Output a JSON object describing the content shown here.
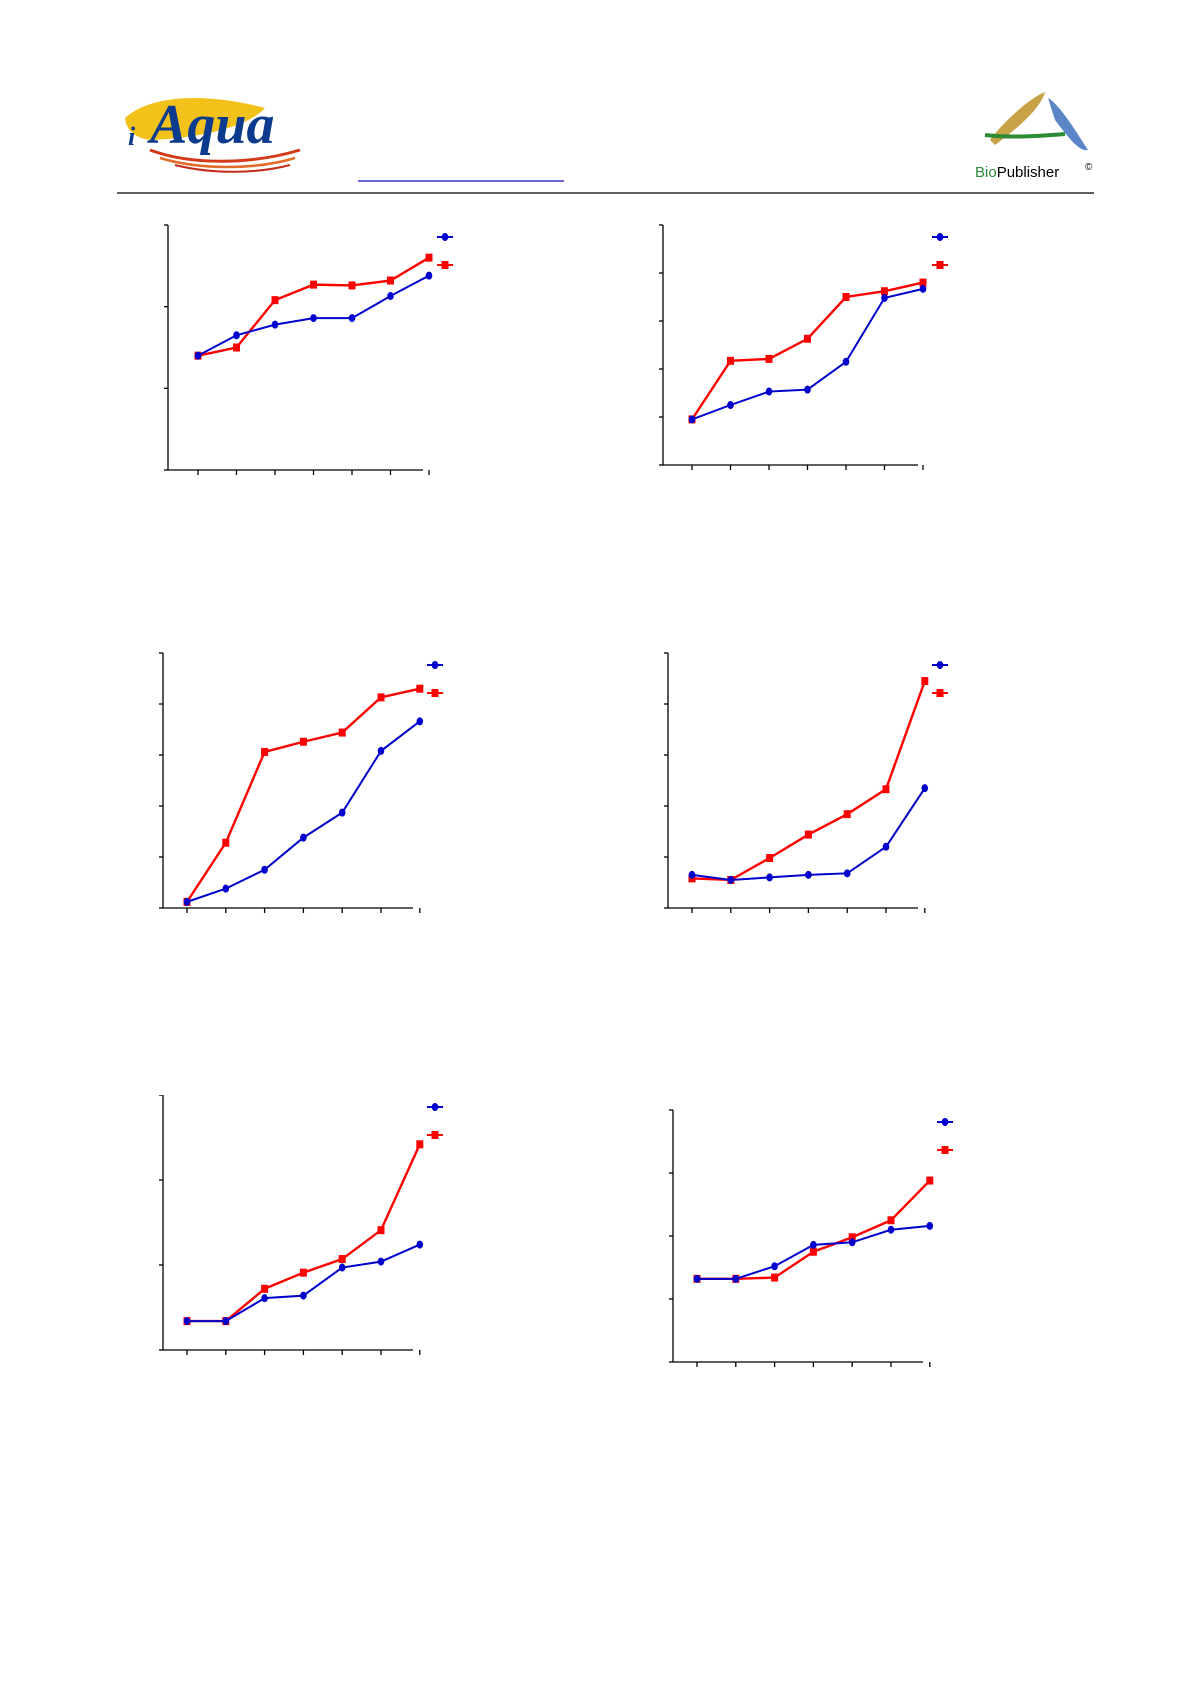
{
  "header": {
    "logo_left_text": "Aqua",
    "logo_left_prefix": "i",
    "logo_right_bio": "Bio",
    "logo_right_publisher": "Publisher",
    "logo_right_copyright": "©"
  },
  "colors": {
    "series1": "#0000cc",
    "series2": "#ff0000",
    "rule": "#000000",
    "link_underline": "#3333cc"
  },
  "chart_data": [
    {
      "type": "line",
      "x": [
        0,
        1,
        2,
        3,
        4,
        5,
        6
      ],
      "ylim": [
        0,
        3
      ],
      "yticks": 3,
      "series": [
        {
          "marker": "circle",
          "values": [
            1.4,
            1.65,
            1.78,
            1.86,
            1.86,
            2.13,
            2.38
          ]
        },
        {
          "marker": "square",
          "values": [
            1.4,
            1.5,
            2.08,
            2.27,
            2.26,
            2.32,
            2.6
          ]
        }
      ]
    },
    {
      "type": "line",
      "x": [
        0,
        1,
        2,
        3,
        4,
        5,
        6
      ],
      "ylim": [
        0,
        5
      ],
      "yticks": 5,
      "series": [
        {
          "marker": "circle",
          "values": [
            0.95,
            1.25,
            1.53,
            1.57,
            2.15,
            3.48,
            3.67
          ]
        },
        {
          "marker": "square",
          "values": [
            0.95,
            2.17,
            2.21,
            2.63,
            3.5,
            3.62,
            3.8
          ]
        }
      ]
    },
    {
      "type": "line",
      "x": [
        0,
        1,
        2,
        3,
        4,
        5,
        6
      ],
      "ylim": [
        0,
        5
      ],
      "yticks": 5,
      "series": [
        {
          "marker": "circle",
          "values": [
            0.12,
            0.38,
            0.75,
            1.38,
            1.87,
            3.08,
            3.66
          ]
        },
        {
          "marker": "square",
          "values": [
            0.12,
            1.28,
            3.06,
            3.26,
            3.44,
            4.13,
            4.3
          ]
        }
      ]
    },
    {
      "type": "line",
      "x": [
        0,
        1,
        2,
        3,
        4,
        5,
        6
      ],
      "ylim": [
        0,
        5
      ],
      "yticks": 5,
      "series": [
        {
          "marker": "circle",
          "values": [
            0.65,
            0.55,
            0.6,
            0.65,
            0.68,
            1.2,
            2.35
          ]
        },
        {
          "marker": "square",
          "values": [
            0.58,
            0.55,
            0.98,
            1.44,
            1.84,
            2.33,
            4.45
          ]
        }
      ]
    },
    {
      "type": "line",
      "x": [
        0,
        1,
        2,
        3,
        4,
        5,
        6
      ],
      "ylim": [
        0,
        3
      ],
      "yticks": 3,
      "series": [
        {
          "marker": "circle",
          "values": [
            0.34,
            0.34,
            0.61,
            0.64,
            0.97,
            1.04,
            1.24
          ]
        },
        {
          "marker": "square",
          "values": [
            0.34,
            0.34,
            0.72,
            0.91,
            1.07,
            1.41,
            2.42
          ]
        }
      ]
    },
    {
      "type": "line",
      "x": [
        0,
        1,
        2,
        3,
        4,
        5,
        6
      ],
      "ylim": [
        0,
        4
      ],
      "yticks": 4,
      "series": [
        {
          "marker": "circle",
          "values": [
            1.32,
            1.32,
            1.52,
            1.86,
            1.9,
            2.1,
            2.16
          ]
        },
        {
          "marker": "square",
          "values": [
            1.32,
            1.32,
            1.34,
            1.75,
            1.98,
            2.25,
            2.88
          ]
        }
      ]
    }
  ]
}
